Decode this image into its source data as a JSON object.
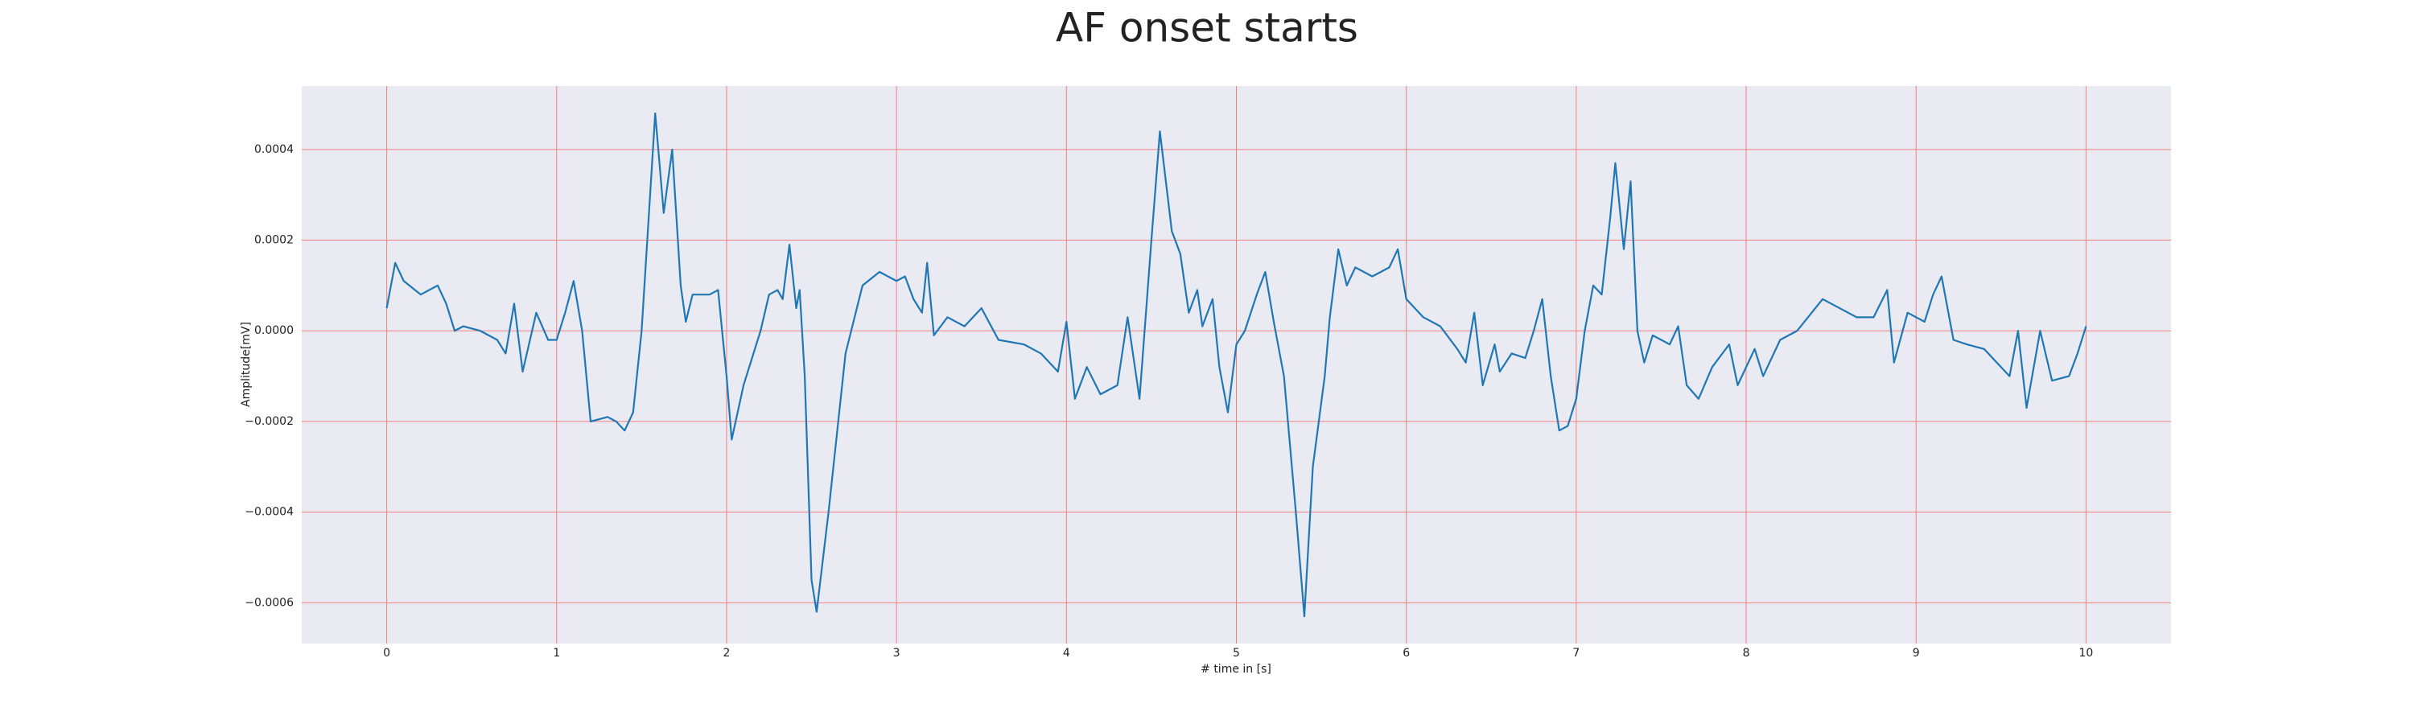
{
  "chart_data": {
    "type": "line",
    "title": "AF onset starts",
    "x_label": "# time in [s]",
    "y_label": "Amplitude[mV]",
    "color": "#1f77b4",
    "grid": true,
    "grid_color": "#f08080",
    "background": "#eaeaf2",
    "xlim": [
      -0.5,
      10.5
    ],
    "ylim": [
      -0.00069,
      0.00054
    ],
    "xticks": [
      0,
      1,
      2,
      3,
      4,
      5,
      6,
      7,
      8,
      9,
      10
    ],
    "yticks": [
      {
        "value": -0.0006,
        "label": "−0.0006"
      },
      {
        "value": -0.0004,
        "label": "−0.0004"
      },
      {
        "value": -0.0002,
        "label": "−0.0002"
      },
      {
        "value": 0,
        "label": "0.0000"
      },
      {
        "value": 0.0002,
        "label": "0.0002"
      },
      {
        "value": 0.0004,
        "label": "0.0004"
      }
    ],
    "x": [
      0,
      0.05,
      0.1,
      0.2,
      0.3,
      0.35,
      0.4,
      0.45,
      0.55,
      0.65,
      0.7,
      0.75,
      0.8,
      0.88,
      0.95,
      1.0,
      1.05,
      1.1,
      1.15,
      1.2,
      1.3,
      1.35,
      1.4,
      1.45,
      1.5,
      1.58,
      1.63,
      1.68,
      1.73,
      1.76,
      1.8,
      1.9,
      1.95,
      2.0,
      2.03,
      2.1,
      2.2,
      2.25,
      2.3,
      2.33,
      2.37,
      2.41,
      2.43,
      2.46,
      2.5,
      2.53,
      2.6,
      2.7,
      2.8,
      2.9,
      3.0,
      3.05,
      3.1,
      3.15,
      3.18,
      3.22,
      3.3,
      3.4,
      3.5,
      3.6,
      3.75,
      3.85,
      3.95,
      4.0,
      4.05,
      4.12,
      4.2,
      4.3,
      4.36,
      4.43,
      4.5,
      4.55,
      4.62,
      4.67,
      4.72,
      4.77,
      4.8,
      4.86,
      4.9,
      4.95,
      5.0,
      5.05,
      5.12,
      5.17,
      5.22,
      5.28,
      5.35,
      5.4,
      5.45,
      5.52,
      5.55,
      5.6,
      5.65,
      5.7,
      5.8,
      5.9,
      5.95,
      6.0,
      6.1,
      6.2,
      6.3,
      6.35,
      6.4,
      6.45,
      6.52,
      6.55,
      6.62,
      6.7,
      6.75,
      6.8,
      6.85,
      6.9,
      6.95,
      7.0,
      7.05,
      7.1,
      7.15,
      7.2,
      7.23,
      7.28,
      7.32,
      7.36,
      7.4,
      7.45,
      7.55,
      7.6,
      7.65,
      7.72,
      7.8,
      7.9,
      7.95,
      8.05,
      8.1,
      8.2,
      8.3,
      8.45,
      8.55,
      8.65,
      8.75,
      8.83,
      8.87,
      8.95,
      9.05,
      9.1,
      9.15,
      9.22,
      9.3,
      9.4,
      9.5,
      9.55,
      9.6,
      9.65,
      9.73,
      9.8,
      9.9,
      9.95,
      10.0
    ],
    "values": [
      5e-05,
      0.00015,
      0.00011,
      8e-05,
      0.0001,
      6e-05,
      0.0,
      1e-05,
      0.0,
      -2e-05,
      -5e-05,
      6e-05,
      -9e-05,
      4e-05,
      -2e-05,
      -2e-05,
      4e-05,
      0.00011,
      0.0,
      -0.0002,
      -0.00019,
      -0.0002,
      -0.00022,
      -0.00018,
      0.0,
      0.00048,
      0.00026,
      0.0004,
      0.0001,
      2e-05,
      8e-05,
      8e-05,
      9e-05,
      -0.0001,
      -0.00024,
      -0.00012,
      0.0,
      8e-05,
      9e-05,
      7e-05,
      0.00019,
      5e-05,
      9e-05,
      -0.0001,
      -0.00055,
      -0.00062,
      -0.0004,
      -5e-05,
      0.0001,
      0.00013,
      0.00011,
      0.00012,
      7e-05,
      4e-05,
      0.00015,
      -1e-05,
      3e-05,
      1e-05,
      5e-05,
      -2e-05,
      -3e-05,
      -5e-05,
      -9e-05,
      2e-05,
      -0.00015,
      -8e-05,
      -0.00014,
      -0.00012,
      3e-05,
      -0.00015,
      0.0002,
      0.00044,
      0.00022,
      0.00017,
      4e-05,
      9e-05,
      1e-05,
      7e-05,
      -8e-05,
      -0.00018,
      -3e-05,
      0.0,
      8e-05,
      0.00013,
      2e-05,
      -0.0001,
      -0.0004,
      -0.00063,
      -0.0003,
      -0.0001,
      3e-05,
      0.00018,
      0.0001,
      0.00014,
      0.00012,
      0.00014,
      0.00018,
      7e-05,
      3e-05,
      1e-05,
      -4e-05,
      -7e-05,
      4e-05,
      -0.00012,
      -3e-05,
      -9e-05,
      -5e-05,
      -6e-05,
      0.0,
      7e-05,
      -0.0001,
      -0.00022,
      -0.00021,
      -0.00015,
      0.0,
      0.0001,
      8e-05,
      0.00025,
      0.00037,
      0.00018,
      0.00033,
      0.0,
      -7e-05,
      -1e-05,
      -3e-05,
      1e-05,
      -0.00012,
      -0.00015,
      -8e-05,
      -3e-05,
      -0.00012,
      -4e-05,
      -0.0001,
      -2e-05,
      0.0,
      7e-05,
      5e-05,
      3e-05,
      3e-05,
      9e-05,
      -7e-05,
      4e-05,
      2e-05,
      8e-05,
      0.00012,
      -2e-05,
      -3e-05,
      -4e-05,
      -8e-05,
      -0.0001,
      0.0,
      -0.00017,
      0.0,
      -0.00011,
      -0.0001,
      -5e-05,
      1e-05
    ]
  }
}
